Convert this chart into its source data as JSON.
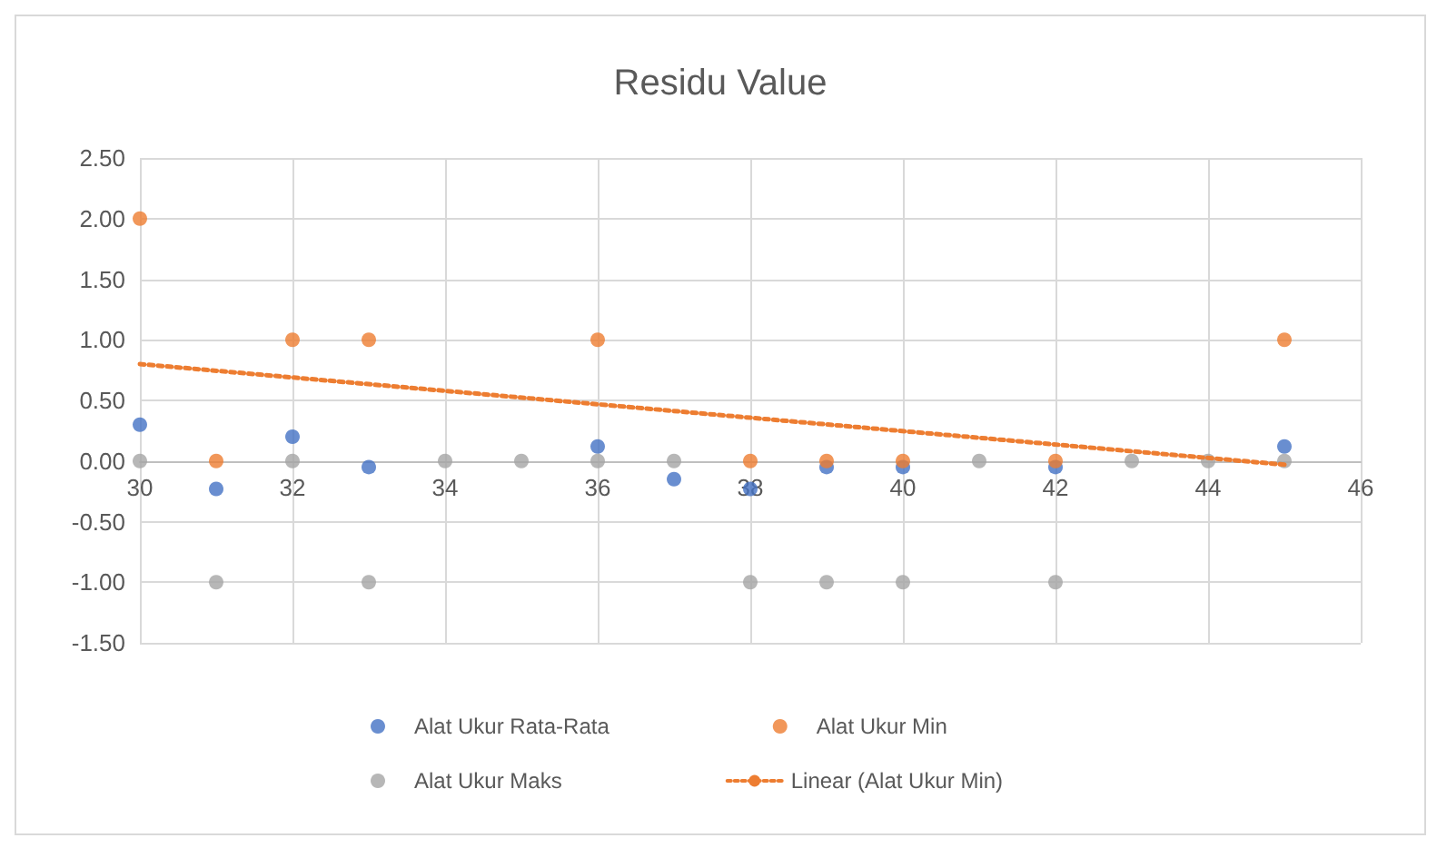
{
  "chart_data": {
    "type": "scatter",
    "title": "Residu Value",
    "x": [
      30,
      31,
      32,
      33,
      34,
      35,
      36,
      37,
      38,
      39,
      40,
      41,
      42,
      43,
      44,
      45
    ],
    "series": [
      {
        "name": "Alat Ukur Rata-Rata",
        "color": "#4472c4",
        "values": [
          0.3,
          -0.23,
          0.2,
          -0.05,
          null,
          null,
          0.12,
          -0.15,
          -0.23,
          -0.05,
          -0.05,
          null,
          -0.05,
          null,
          null,
          0.12
        ]
      },
      {
        "name": "Alat Ukur Min",
        "color": "#ed7d31",
        "values": [
          2,
          0,
          1,
          1,
          null,
          null,
          1,
          null,
          0,
          0,
          0,
          null,
          0,
          null,
          null,
          1
        ]
      },
      {
        "name": "Alat Ukur Maks",
        "color": "#a5a5a5",
        "values": [
          0,
          -1,
          0,
          -1,
          0,
          0,
          0,
          0,
          -1,
          -1,
          -1,
          0,
          -1,
          0,
          0,
          0
        ]
      },
      {
        "name": "Linear (Alat Ukur Min)",
        "type": "line",
        "color": "#ed7d31",
        "line_style": "dotted",
        "marker": "none",
        "x": [
          30,
          45
        ],
        "values": [
          0.8,
          -0.03
        ]
      }
    ],
    "xlim": [
      30,
      46
    ],
    "xticks": [
      30,
      32,
      34,
      36,
      38,
      40,
      42,
      44,
      46
    ],
    "ylim": [
      -1.5,
      2.5
    ],
    "yticks": [
      {
        "value": -1.5,
        "label": "-1.50"
      },
      {
        "value": -1,
        "label": "-1.00"
      },
      {
        "value": -0.5,
        "label": "-0.50"
      },
      {
        "value": 0,
        "label": "0.00"
      },
      {
        "value": 0.5,
        "label": "0.50"
      },
      {
        "value": 1,
        "label": "1.00"
      },
      {
        "value": 1.5,
        "label": "1.50"
      },
      {
        "value": 2,
        "label": "2.00"
      },
      {
        "value": 2.5,
        "label": "2.50"
      }
    ],
    "grid": true,
    "legend": "bottom",
    "marker": "circle"
  }
}
